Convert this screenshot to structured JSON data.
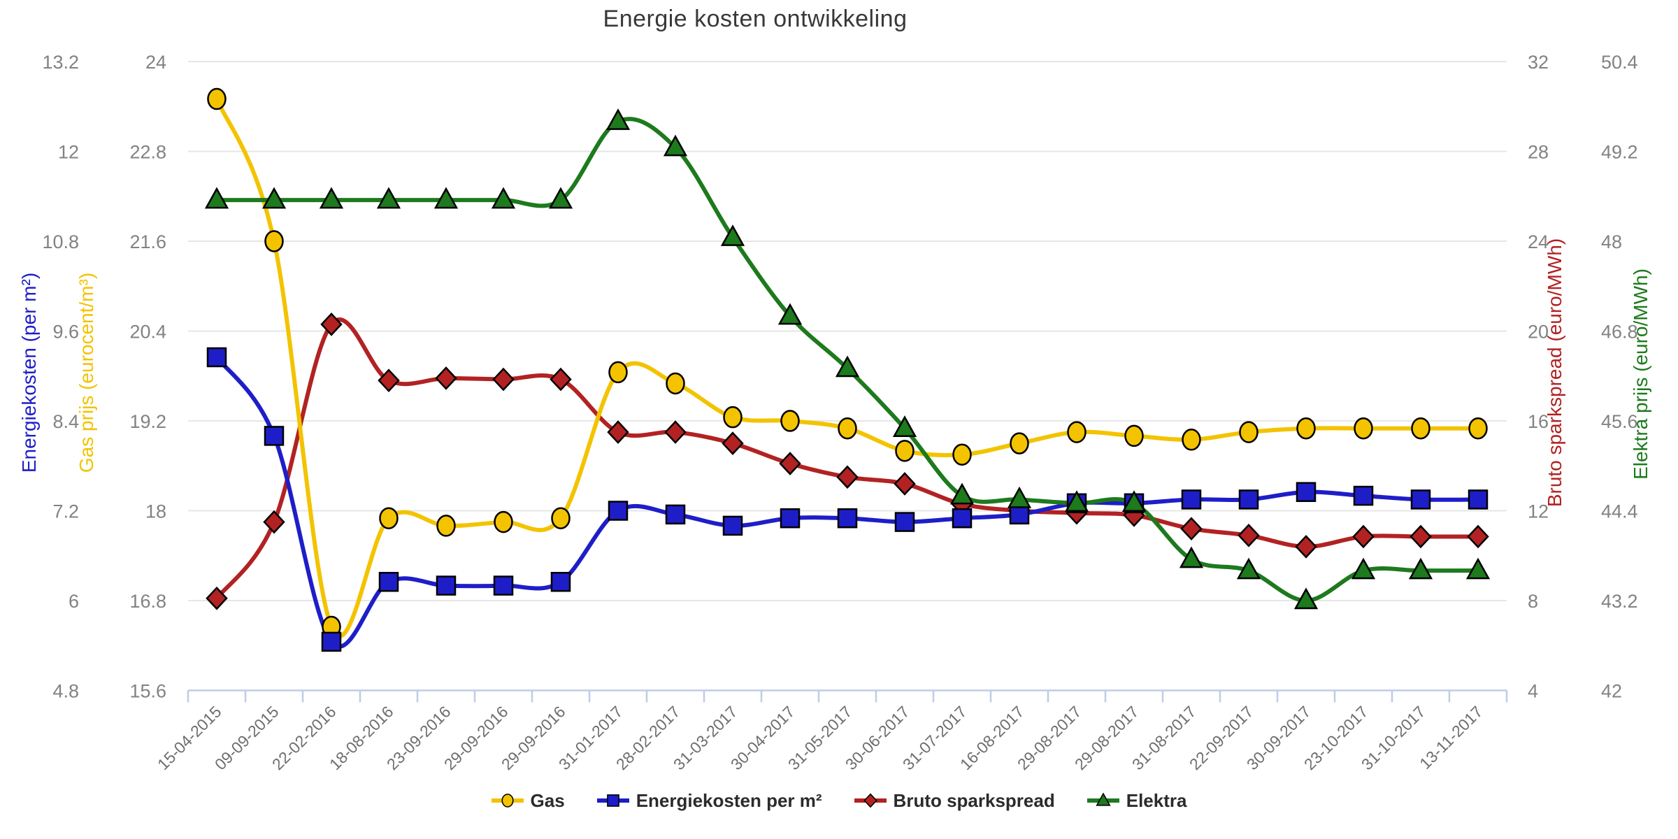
{
  "page": {
    "background": "#ffffff"
  },
  "chart_data": {
    "type": "line",
    "title": "Energie kosten ontwikkeling",
    "legend_position": "bottom",
    "grid": true,
    "smooth_lines": true,
    "colors": {
      "grid_line": "#e6e6e6",
      "axis_line": "#bfcce6",
      "tick_label": "#828282",
      "date_label": "#6e6e6e",
      "title_text": "#383838",
      "legend_text": "#2b2b2b",
      "marker_outline": "#000000"
    },
    "categories": [
      "15-04-2015",
      "09-09-2015",
      "22-02-2016",
      "18-08-2016",
      "23-09-2016",
      "29-09-2016",
      "29-09-2016",
      "31-01-2017",
      "28-02-2017",
      "31-03-2017",
      "30-04-2017",
      "31-05-2017",
      "30-06-2017",
      "31-07-2017",
      "16-08-2017",
      "29-08-2017",
      "29-08-2017",
      "31-08-2017",
      "22-09-2017",
      "30-09-2017",
      "23-10-2017",
      "31-10-2017",
      "13-11-2017"
    ],
    "axes": {
      "energiekosten": {
        "title": "Energiekosten (per m²)",
        "color": "#1e1ec8",
        "side": "left",
        "min": 4.8,
        "max": 13.2,
        "ticks": [
          13.2,
          12,
          10.8,
          9.6,
          8.4,
          7.2,
          6,
          4.8
        ]
      },
      "gas": {
        "title": "Gas prijs (eurocent/m³)",
        "color": "#f3c300",
        "side": "left",
        "min": 15.6,
        "max": 24,
        "ticks": [
          24,
          22.8,
          21.6,
          20.4,
          19.2,
          18,
          16.8,
          15.6
        ]
      },
      "sparkspread": {
        "title": "Bruto sparkspread (euro/MWh)",
        "color": "#b22222",
        "side": "right",
        "min": 4,
        "max": 32,
        "ticks": [
          32,
          28,
          24,
          20,
          16,
          12,
          8,
          4
        ]
      },
      "elektra": {
        "title": "Elektra prijs (euro/MWh)",
        "color": "#1d7a1d",
        "side": "right",
        "min": 42,
        "max": 50.4,
        "ticks": [
          50.4,
          49.2,
          48,
          46.8,
          45.6,
          44.4,
          43.2,
          42
        ]
      }
    },
    "series": [
      {
        "name": "Gas",
        "axis": "gas",
        "color": "#f3c300",
        "marker": "circle",
        "values": [
          23.5,
          21.6,
          16.45,
          17.9,
          17.8,
          17.85,
          17.9,
          19.85,
          19.7,
          19.25,
          19.2,
          19.1,
          18.8,
          18.75,
          18.9,
          19.05,
          19.0,
          18.95,
          19.05,
          19.1,
          19.1,
          19.1,
          19.1
        ]
      },
      {
        "name": "Energiekosten per m²",
        "axis": "energiekosten",
        "color": "#1e1ec8",
        "marker": "square",
        "values": [
          9.25,
          8.2,
          5.45,
          6.25,
          6.2,
          6.2,
          6.25,
          7.2,
          7.15,
          7.0,
          7.1,
          7.1,
          7.05,
          7.1,
          7.15,
          7.3,
          7.3,
          7.35,
          7.35,
          7.45,
          7.4,
          7.35,
          7.35
        ]
      },
      {
        "name": "Bruto sparkspread",
        "axis": "sparkspread",
        "color": "#b22222",
        "marker": "diamond",
        "values": [
          8.1,
          11.5,
          20.3,
          17.8,
          17.9,
          17.85,
          17.85,
          15.5,
          15.5,
          15.0,
          14.1,
          13.5,
          13.2,
          12.3,
          12.0,
          11.9,
          11.8,
          11.2,
          10.9,
          10.4,
          10.85,
          10.85,
          10.85
        ]
      },
      {
        "name": "Elektra",
        "axis": "elektra",
        "color": "#1d7a1d",
        "marker": "triangle",
        "values": [
          48.55,
          48.55,
          48.55,
          48.55,
          48.55,
          48.55,
          48.55,
          49.6,
          49.25,
          48.05,
          47.0,
          46.3,
          45.5,
          44.6,
          44.55,
          44.5,
          44.5,
          43.75,
          43.6,
          43.2,
          43.6,
          43.6,
          43.6
        ]
      }
    ],
    "legend": [
      "Gas",
      "Energiekosten per m²",
      "Bruto sparkspread",
      "Elektra"
    ]
  }
}
